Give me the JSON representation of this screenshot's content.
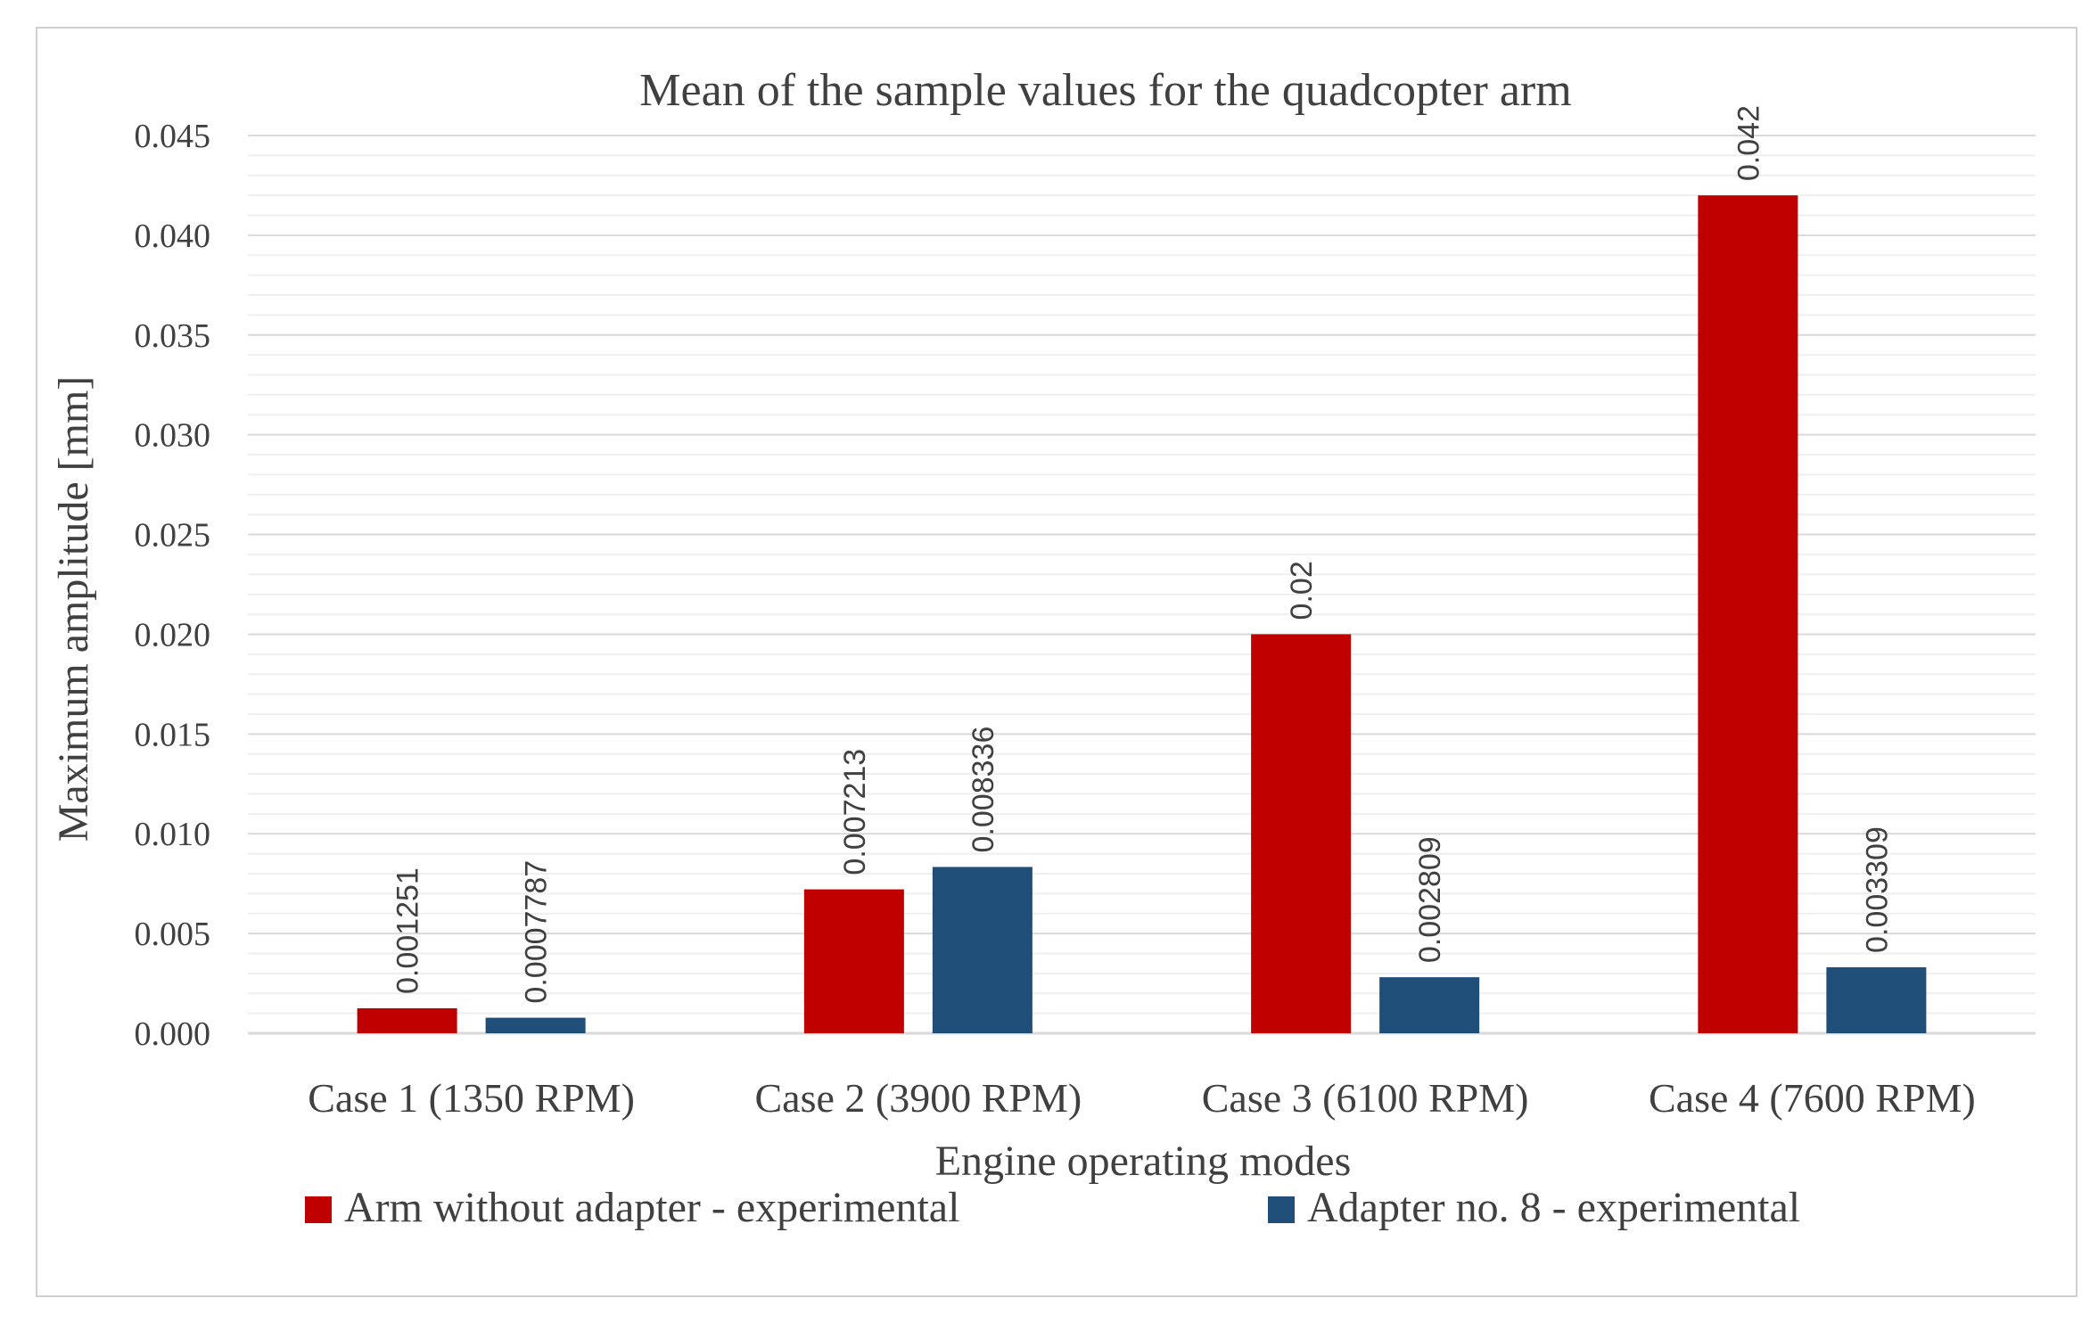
{
  "chart_data": {
    "type": "bar",
    "title": "Mean of the sample values for the quadcopter arm",
    "xlabel": "Engine operating modes",
    "ylabel": "Maximum amplitude [mm]",
    "ylim": [
      0,
      0.045
    ],
    "yticks": [
      "0.000",
      "0.005",
      "0.010",
      "0.015",
      "0.020",
      "0.025",
      "0.030",
      "0.035",
      "0.040",
      "0.045"
    ],
    "ytick_values": [
      0,
      0.005,
      0.01,
      0.015,
      0.02,
      0.025,
      0.03,
      0.035,
      0.04,
      0.045
    ],
    "minor_gridlines_per_major": 5,
    "grid": true,
    "legend_position": "bottom",
    "categories": [
      "Case 1 (1350 RPM)",
      "Case 2 (3900 RPM)",
      "Case 3 (6100 RPM)",
      "Case 4 (7600 RPM)"
    ],
    "series": [
      {
        "name": "Arm without adapter - experimental",
        "color": "#c00000",
        "values": [
          0.001251,
          0.007213,
          0.02,
          0.042
        ],
        "labels": [
          "0.001251",
          "0.007213",
          "0.02",
          "0.042"
        ]
      },
      {
        "name": "Adapter no. 8 - experimental",
        "color": "#1f4e79",
        "values": [
          0.0007787,
          0.008336,
          0.002809,
          0.003309
        ],
        "labels": [
          "0.0007787",
          "0.008336",
          "0.002809",
          "0.003309"
        ]
      }
    ]
  },
  "colors": {
    "major_grid": "#d9d9d9",
    "minor_grid": "#efefef",
    "text": "#404040"
  }
}
